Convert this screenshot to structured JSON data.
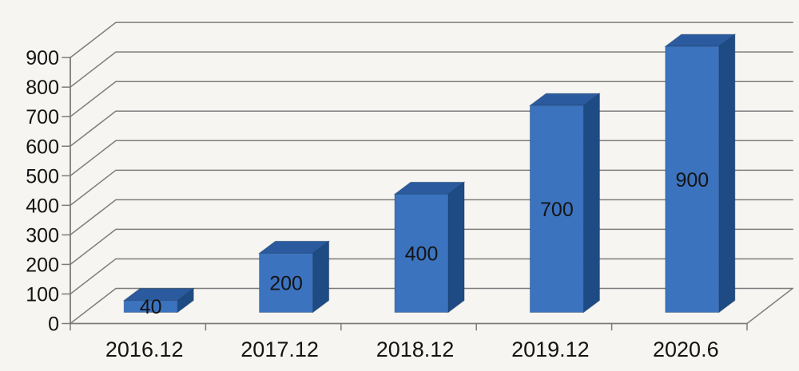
{
  "chart_data": {
    "type": "bar",
    "variant": "3d-column",
    "title": "",
    "xlabel": "",
    "ylabel": "",
    "categories": [
      "2016.12",
      "2017.12",
      "2018.12",
      "2019.12",
      "2020.6"
    ],
    "values": [
      40,
      200,
      400,
      700,
      900
    ],
    "data_labels": [
      "40",
      "200",
      "400",
      "700",
      "900"
    ],
    "yticks": [
      0,
      100,
      200,
      300,
      400,
      500,
      600,
      700,
      800,
      900
    ],
    "ytick_labels": [
      "0",
      "100",
      "200",
      "300",
      "400",
      "500",
      "600",
      "700",
      "800",
      "900"
    ],
    "ylim": [
      0,
      900
    ],
    "grid": true,
    "legend_position": "none",
    "colors": {
      "background": "#F6F5F1",
      "grid_line": "#7C7C7C",
      "axis_line": "#7C7C7C",
      "bar_front": "#3C73BF",
      "bar_top": "#2B5B9E",
      "bar_side": "#1E4B84",
      "bar_edge": "#16375F",
      "text": "#141414"
    }
  }
}
